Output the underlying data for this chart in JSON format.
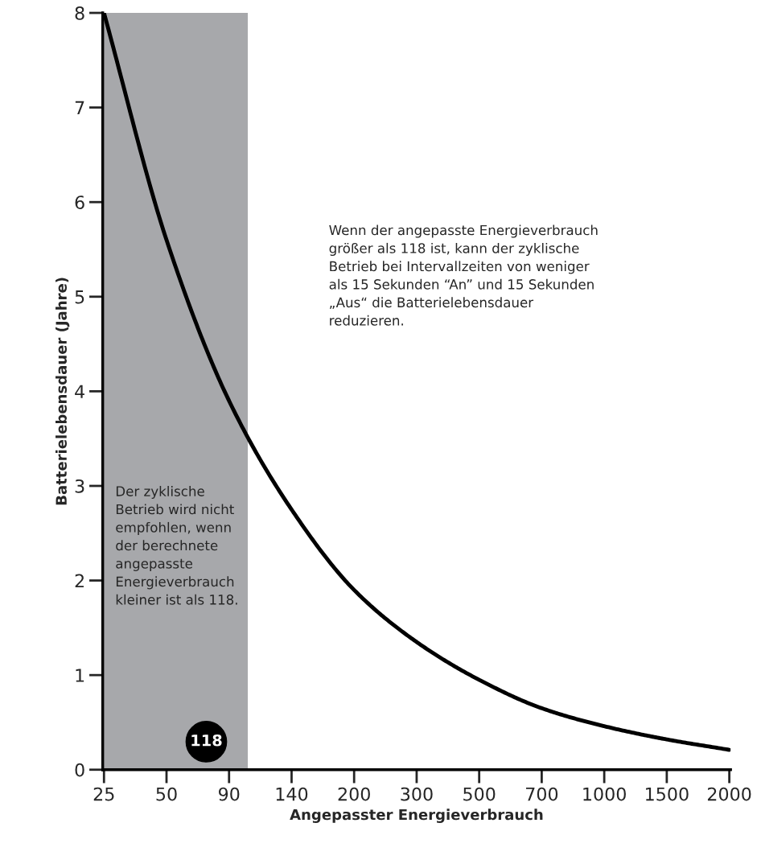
{
  "chart_data": {
    "type": "line",
    "xlabel": "Angepasster Energieverbrauch",
    "ylabel": "Batterielebensdauer (Jahre)",
    "categories": [
      "25",
      "50",
      "90",
      "140",
      "200",
      "300",
      "500",
      "700",
      "1000",
      "1500",
      "2000"
    ],
    "series": [
      {
        "color": "#000000",
        "values": [
          8,
          5.6,
          3.9,
          2.75,
          1.9,
          1.35,
          0.95,
          0.65,
          0.46,
          0.32,
          0.21
        ]
      }
    ],
    "ylim": [
      0,
      8
    ],
    "yticks": [
      0,
      1,
      2,
      3,
      4,
      5,
      6,
      7,
      8
    ],
    "grid": false,
    "legend": false,
    "marker": "none",
    "line_style": "solid",
    "annotations": [
      "Wenn der angepasste Energieverbrauch\ngrößer als 118 ist, kann der zyklische\nBetrieb bei Intervallzeiten von weniger\nals 15 Sekunden “An” und 15 Sekunden\n„Aus“ die Batterielebensdauer\nreduzieren.",
      "Der zyklische\nBetrieb wird nicht\nempfohlen, wenn\nder berechnete\nangepasste\nEnergieverbrauch\nkleiner ist als 118.",
      "118"
    ]
  }
}
